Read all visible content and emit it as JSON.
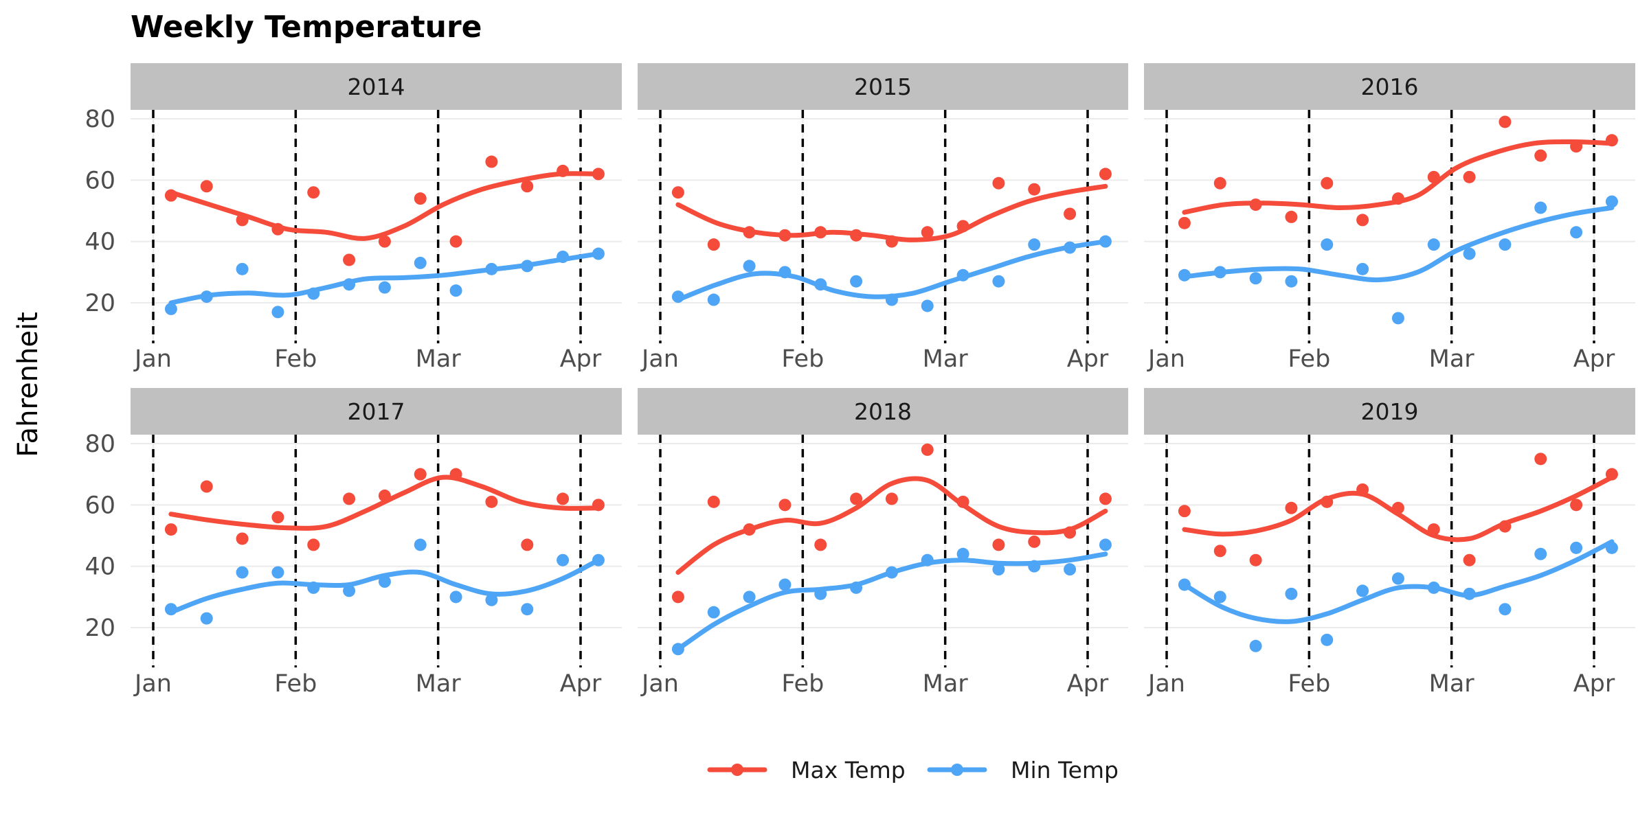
{
  "chart_data": {
    "type": "line",
    "title": "Weekly Temperature",
    "ylabel": "Fahrenheit",
    "xlabel": "",
    "ylim": [
      10,
      95
    ],
    "y_ticks": [
      20,
      40,
      60,
      80
    ],
    "x_ticks": [
      {
        "label": "Jan",
        "week": 0
      },
      {
        "label": "Feb",
        "week": 4
      },
      {
        "label": "Mar",
        "week": 8
      },
      {
        "label": "Apr",
        "week": 12
      }
    ],
    "vertical_reference_lines": [
      "Jan",
      "Feb",
      "Mar",
      "Apr"
    ],
    "legend_position": "bottom",
    "series_styles": [
      {
        "name": "Max Temp",
        "color": "#f44b3a"
      },
      {
        "name": "Min Temp",
        "color": "#4fa5f5"
      }
    ],
    "point_weeks": [
      0.5,
      1.5,
      2.5,
      3.5,
      4.5,
      5.5,
      6.5,
      7.5,
      8.5,
      9.5,
      10.5,
      11.5,
      12.5
    ],
    "panels": [
      {
        "label": "2014",
        "series": [
          {
            "name": "Max Temp",
            "points": [
              55,
              58,
              47,
              44,
              56,
              34,
              40,
              54,
              40,
              66,
              58,
              63,
              62
            ],
            "smooth": [
              56,
              52,
              48,
              44,
              43,
              41,
              45,
              52,
              57,
              60,
              62,
              62
            ]
          },
          {
            "name": "Min Temp",
            "points": [
              18,
              22,
              31,
              17,
              23,
              26,
              25,
              33,
              24,
              31,
              32,
              35,
              36
            ],
            "smooth": [
              20,
              22.5,
              23.2,
              22.5,
              25,
              27.8,
              28.2,
              29,
              30.5,
              32,
              34,
              36
            ]
          }
        ]
      },
      {
        "label": "2015",
        "series": [
          {
            "name": "Max Temp",
            "points": [
              56,
              39,
              43,
              42,
              43,
              42,
              40,
              43,
              45,
              59,
              57,
              49,
              62
            ],
            "smooth": [
              52,
              46,
              43,
              42,
              43,
              42,
              40.5,
              42,
              48,
              53,
              56,
              58
            ]
          },
          {
            "name": "Min Temp",
            "points": [
              22,
              21,
              32,
              30,
              26,
              27,
              21,
              19,
              29,
              27,
              39,
              38,
              40
            ],
            "smooth": [
              21,
              26,
              29.5,
              28.5,
              24,
              22,
              23,
              27,
              31,
              35,
              38,
              40
            ]
          }
        ]
      },
      {
        "label": "2016",
        "series": [
          {
            "name": "Max Temp",
            "points": [
              46,
              59,
              52,
              48,
              59,
              47,
              54,
              61,
              61,
              79,
              68,
              71,
              73
            ],
            "smooth": [
              49.5,
              52,
              52.5,
              52,
              51,
              52,
              55,
              64,
              69,
              72,
              72.5,
              72
            ]
          },
          {
            "name": "Min Temp",
            "points": [
              29,
              30,
              28,
              27,
              39,
              31,
              15,
              39,
              36,
              39,
              51,
              43,
              53
            ],
            "smooth": [
              28.5,
              30,
              31,
              31,
              29,
              27.5,
              30,
              37,
              42,
              46,
              49,
              51
            ]
          }
        ]
      },
      {
        "label": "2017",
        "series": [
          {
            "name": "Max Temp",
            "points": [
              52,
              66,
              49,
              56,
              47,
              62,
              63,
              70,
              70,
              61,
              47,
              62,
              60
            ],
            "smooth": [
              57,
              55,
              53.5,
              52.5,
              53,
              58,
              64,
              69,
              66,
              61,
              59,
              59
            ]
          },
          {
            "name": "Min Temp",
            "points": [
              26,
              23,
              38,
              38,
              33,
              32,
              35,
              47,
              30,
              29,
              26,
              42,
              42
            ],
            "smooth": [
              25,
              29.5,
              32.5,
              34.5,
              34,
              34,
              37,
              38,
              34,
              31,
              32,
              36,
              42
            ]
          }
        ]
      },
      {
        "label": "2018",
        "series": [
          {
            "name": "Max Temp",
            "points": [
              30,
              61,
              52,
              60,
              47,
              62,
              62,
              78,
              61,
              47,
              48,
              51,
              62
            ],
            "smooth": [
              38,
              47,
              52,
              55,
              54,
              59,
              67,
              68,
              60,
              53,
              51,
              52,
              58
            ]
          },
          {
            "name": "Min Temp",
            "points": [
              13,
              25,
              30,
              34,
              31,
              33,
              38,
              42,
              44,
              39,
              40,
              39,
              47
            ],
            "smooth": [
              13,
              21,
              27,
              31.5,
              32.5,
              34,
              38,
              41,
              42,
              41,
              41,
              42,
              44
            ]
          }
        ]
      },
      {
        "label": "2019",
        "series": [
          {
            "name": "Max Temp",
            "points": [
              58,
              45,
              42,
              59,
              61,
              65,
              59,
              52,
              42,
              53,
              75,
              60,
              70
            ],
            "smooth": [
              52,
              50.5,
              51.5,
              55,
              62,
              63.5,
              57,
              50,
              49,
              54,
              58,
              63,
              69
            ]
          },
          {
            "name": "Min Temp",
            "points": [
              34,
              30,
              14,
              31,
              16,
              32,
              36,
              33,
              31,
              26,
              44,
              46,
              46
            ],
            "smooth": [
              34,
              27,
              23,
              22,
              24.5,
              29,
              33,
              33,
              30.5,
              33.5,
              37,
              42,
              48
            ]
          }
        ]
      }
    ]
  }
}
